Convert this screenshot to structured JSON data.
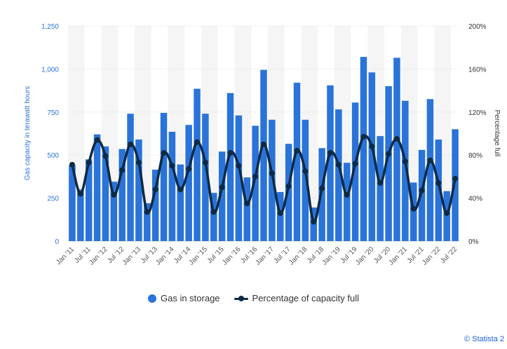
{
  "chart_data": {
    "type": "bar",
    "title": "",
    "xlabel": "",
    "ylabel": "Gas capacity in terawatt hours",
    "y2label": "Percentage full",
    "ylim": [
      0,
      1250
    ],
    "y2lim": [
      0,
      200
    ],
    "yticks": [
      "0",
      "250",
      "500",
      "750",
      "1,000",
      "1,250"
    ],
    "y2ticks": [
      "0%",
      "40%",
      "80%",
      "120%",
      "160%",
      "200%"
    ],
    "grid": true,
    "legend_position": "bottom",
    "x_tick_labels": [
      "Jan '11",
      "Jul '11",
      "Jan '12",
      "Jul '12",
      "Jan '13",
      "Jul '13",
      "Jan '14",
      "Jul '14",
      "Jan '15",
      "Jul '15",
      "Jan '16",
      "Jul '16",
      "Jan '17",
      "Jul '17",
      "Jan '18",
      "Jul '18",
      "Jan '19",
      "Jul '19",
      "Jan '20",
      "Jul '20",
      "Jan '21",
      "Jul '21",
      "Jan '22",
      "Jul '22"
    ],
    "categories": [
      "Jan '11",
      "Apr '11",
      "Jul '11",
      "Oct '11",
      "Jan '12",
      "Apr '12",
      "Jul '12",
      "Oct '12",
      "Jan '13",
      "Apr '13",
      "Jul '13",
      "Oct '13",
      "Jan '14",
      "Apr '14",
      "Jul '14",
      "Oct '14",
      "Jan '15",
      "Apr '15",
      "Jul '15",
      "Oct '15",
      "Jan '16",
      "Apr '16",
      "Jul '16",
      "Oct '16",
      "Jan '17",
      "Apr '17",
      "Jul '17",
      "Oct '17",
      "Jan '18",
      "Apr '18",
      "Jul '18",
      "Oct '18",
      "Jan '19",
      "Apr '19",
      "Jul '19",
      "Oct '19",
      "Jan '20",
      "Apr '20",
      "Jul '20",
      "Oct '20",
      "Jan '21",
      "Apr '21",
      "Jul '21",
      "Oct '21",
      "Jan '22",
      "Apr '22",
      "Jul '22"
    ],
    "series": [
      {
        "name": "Gas in storage",
        "type": "bar",
        "axis": "left",
        "color": "#2a73d9",
        "values": [
          440,
          300,
          475,
          620,
          550,
          345,
          535,
          740,
          590,
          220,
          415,
          745,
          635,
          445,
          675,
          885,
          740,
          280,
          520,
          860,
          730,
          370,
          670,
          995,
          705,
          285,
          565,
          920,
          705,
          195,
          540,
          905,
          765,
          455,
          805,
          1070,
          980,
          610,
          900,
          1065,
          815,
          340,
          530,
          825,
          590,
          290,
          650
        ]
      },
      {
        "name": "Percentage of capacity full",
        "type": "line",
        "axis": "right",
        "color": "#0d2a43",
        "values": [
          71,
          44,
          73,
          94,
          79,
          43,
          66,
          90,
          73,
          27,
          48,
          82,
          70,
          48,
          67,
          92,
          73,
          27,
          50,
          82,
          70,
          35,
          60,
          90,
          63,
          26,
          51,
          84,
          65,
          18,
          49,
          82,
          71,
          43,
          72,
          97,
          88,
          54,
          81,
          95,
          74,
          30,
          47,
          75,
          54,
          26,
          58
        ]
      }
    ]
  },
  "legend": {
    "items": [
      {
        "label": "Gas in storage",
        "color": "#2a73d9"
      },
      {
        "label": "Percentage of capacity full",
        "color": "#0d2a43"
      }
    ]
  },
  "credit": "© Statista 2"
}
